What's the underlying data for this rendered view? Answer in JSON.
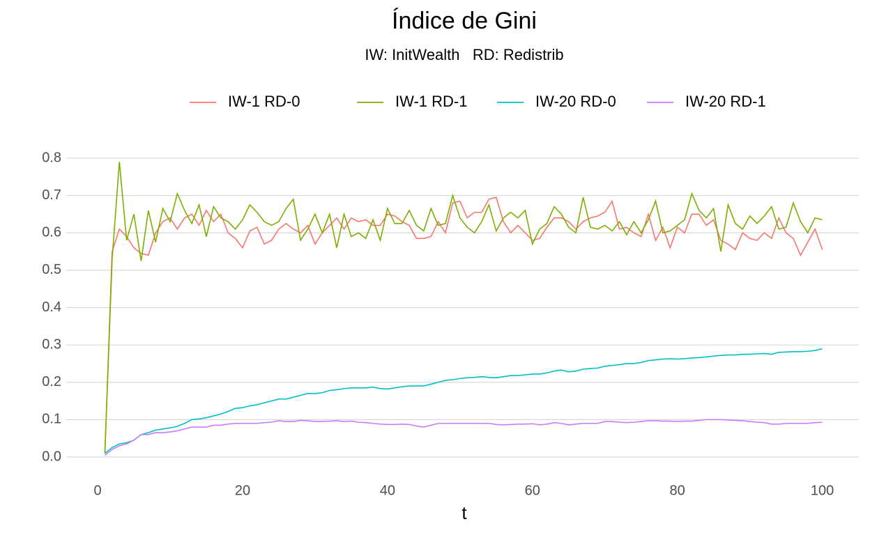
{
  "chart_data": {
    "type": "line",
    "title": "Índice de Gini",
    "subtitle": "IW: InitWealth   RD: Redistrib",
    "x_label": "t",
    "x": [
      1,
      2,
      3,
      4,
      5,
      6,
      7,
      8,
      9,
      10,
      11,
      12,
      13,
      14,
      15,
      16,
      17,
      18,
      19,
      20,
      21,
      22,
      23,
      24,
      25,
      26,
      27,
      28,
      29,
      30,
      31,
      32,
      33,
      34,
      35,
      36,
      37,
      38,
      39,
      40,
      41,
      42,
      43,
      44,
      45,
      46,
      47,
      48,
      49,
      50,
      51,
      52,
      53,
      54,
      55,
      56,
      57,
      58,
      59,
      60,
      61,
      62,
      63,
      64,
      65,
      66,
      67,
      68,
      69,
      70,
      71,
      72,
      73,
      74,
      75,
      76,
      77,
      78,
      79,
      80,
      81,
      82,
      83,
      84,
      85,
      86,
      87,
      88,
      89,
      90,
      91,
      92,
      93,
      94,
      95,
      96,
      97,
      98,
      99,
      100
    ],
    "series": [
      {
        "name": "IW-1 RD-0",
        "color": "#F8766D",
        "values": [
          0.01,
          0.55,
          0.61,
          0.59,
          0.56,
          0.545,
          0.54,
          0.6,
          0.63,
          0.64,
          0.61,
          0.64,
          0.65,
          0.62,
          0.66,
          0.63,
          0.65,
          0.6,
          0.585,
          0.56,
          0.605,
          0.615,
          0.57,
          0.58,
          0.61,
          0.625,
          0.61,
          0.6,
          0.62,
          0.57,
          0.6,
          0.62,
          0.64,
          0.61,
          0.64,
          0.63,
          0.635,
          0.62,
          0.62,
          0.65,
          0.645,
          0.63,
          0.62,
          0.585,
          0.585,
          0.59,
          0.63,
          0.6,
          0.68,
          0.685,
          0.64,
          0.655,
          0.655,
          0.69,
          0.695,
          0.63,
          0.6,
          0.62,
          0.6,
          0.58,
          0.585,
          0.615,
          0.64,
          0.64,
          0.63,
          0.61,
          0.63,
          0.64,
          0.645,
          0.655,
          0.685,
          0.61,
          0.615,
          0.6,
          0.59,
          0.65,
          0.58,
          0.615,
          0.56,
          0.615,
          0.6,
          0.65,
          0.65,
          0.62,
          0.635,
          0.58,
          0.57,
          0.555,
          0.6,
          0.585,
          0.58,
          0.6,
          0.585,
          0.64,
          0.6,
          0.585,
          0.54,
          0.575,
          0.61,
          0.555
        ]
      },
      {
        "name": "IW-1 RD-1",
        "color": "#7CAE00",
        "values": [
          0.01,
          0.53,
          0.79,
          0.58,
          0.65,
          0.525,
          0.66,
          0.575,
          0.665,
          0.63,
          0.705,
          0.66,
          0.625,
          0.675,
          0.59,
          0.67,
          0.64,
          0.63,
          0.61,
          0.635,
          0.675,
          0.655,
          0.63,
          0.62,
          0.63,
          0.665,
          0.69,
          0.58,
          0.61,
          0.65,
          0.6,
          0.65,
          0.56,
          0.65,
          0.59,
          0.6,
          0.585,
          0.635,
          0.58,
          0.665,
          0.625,
          0.625,
          0.66,
          0.62,
          0.605,
          0.665,
          0.62,
          0.625,
          0.7,
          0.64,
          0.615,
          0.6,
          0.63,
          0.675,
          0.605,
          0.64,
          0.655,
          0.64,
          0.66,
          0.57,
          0.61,
          0.625,
          0.67,
          0.65,
          0.615,
          0.6,
          0.695,
          0.615,
          0.61,
          0.62,
          0.605,
          0.63,
          0.595,
          0.63,
          0.6,
          0.635,
          0.685,
          0.6,
          0.605,
          0.62,
          0.635,
          0.705,
          0.66,
          0.64,
          0.665,
          0.55,
          0.675,
          0.625,
          0.61,
          0.645,
          0.625,
          0.645,
          0.67,
          0.61,
          0.615,
          0.68,
          0.63,
          0.6,
          0.64,
          0.635
        ]
      },
      {
        "name": "IW-20 RD-0",
        "color": "#00BFC4",
        "values": [
          0.01,
          0.025,
          0.035,
          0.038,
          0.045,
          0.06,
          0.065,
          0.072,
          0.075,
          0.078,
          0.082,
          0.09,
          0.1,
          0.102,
          0.105,
          0.11,
          0.115,
          0.122,
          0.13,
          0.132,
          0.137,
          0.14,
          0.145,
          0.15,
          0.155,
          0.155,
          0.16,
          0.165,
          0.17,
          0.17,
          0.172,
          0.178,
          0.18,
          0.183,
          0.185,
          0.185,
          0.185,
          0.187,
          0.183,
          0.182,
          0.185,
          0.188,
          0.19,
          0.19,
          0.19,
          0.195,
          0.2,
          0.205,
          0.207,
          0.21,
          0.212,
          0.213,
          0.215,
          0.213,
          0.212,
          0.215,
          0.218,
          0.218,
          0.22,
          0.222,
          0.222,
          0.225,
          0.23,
          0.233,
          0.228,
          0.23,
          0.235,
          0.237,
          0.238,
          0.243,
          0.245,
          0.247,
          0.25,
          0.25,
          0.253,
          0.258,
          0.26,
          0.262,
          0.263,
          0.262,
          0.263,
          0.265,
          0.266,
          0.268,
          0.27,
          0.272,
          0.273,
          0.273,
          0.275,
          0.275,
          0.276,
          0.277,
          0.275,
          0.28,
          0.281,
          0.282,
          0.282,
          0.283,
          0.285,
          0.29
        ]
      },
      {
        "name": "IW-20 RD-1",
        "color": "#C77CFF",
        "values": [
          0.005,
          0.02,
          0.03,
          0.035,
          0.045,
          0.06,
          0.06,
          0.065,
          0.065,
          0.067,
          0.07,
          0.075,
          0.08,
          0.08,
          0.08,
          0.085,
          0.085,
          0.088,
          0.09,
          0.09,
          0.09,
          0.09,
          0.092,
          0.093,
          0.097,
          0.095,
          0.095,
          0.098,
          0.097,
          0.095,
          0.095,
          0.096,
          0.097,
          0.095,
          0.096,
          0.093,
          0.092,
          0.09,
          0.088,
          0.087,
          0.087,
          0.088,
          0.087,
          0.083,
          0.08,
          0.085,
          0.09,
          0.09,
          0.09,
          0.09,
          0.09,
          0.09,
          0.09,
          0.09,
          0.087,
          0.086,
          0.087,
          0.088,
          0.088,
          0.089,
          0.086,
          0.088,
          0.092,
          0.09,
          0.086,
          0.088,
          0.09,
          0.09,
          0.09,
          0.095,
          0.095,
          0.093,
          0.092,
          0.093,
          0.095,
          0.097,
          0.097,
          0.096,
          0.096,
          0.095,
          0.096,
          0.096,
          0.098,
          0.1,
          0.1,
          0.1,
          0.099,
          0.098,
          0.097,
          0.095,
          0.093,
          0.092,
          0.088,
          0.088,
          0.09,
          0.09,
          0.09,
          0.09,
          0.092,
          0.093
        ]
      }
    ],
    "xlim": [
      -3.95,
      104.95
    ],
    "xticks": [
      0,
      20,
      40,
      60,
      80,
      100
    ],
    "ylim": [
      -0.04,
      0.83
    ],
    "yticks": [
      {
        "value": 0,
        "label": "0.0"
      },
      0.1,
      0.2,
      0.3,
      0.4,
      0.5,
      0.6,
      0.7,
      0.8
    ],
    "grid": true,
    "legend": "top"
  }
}
